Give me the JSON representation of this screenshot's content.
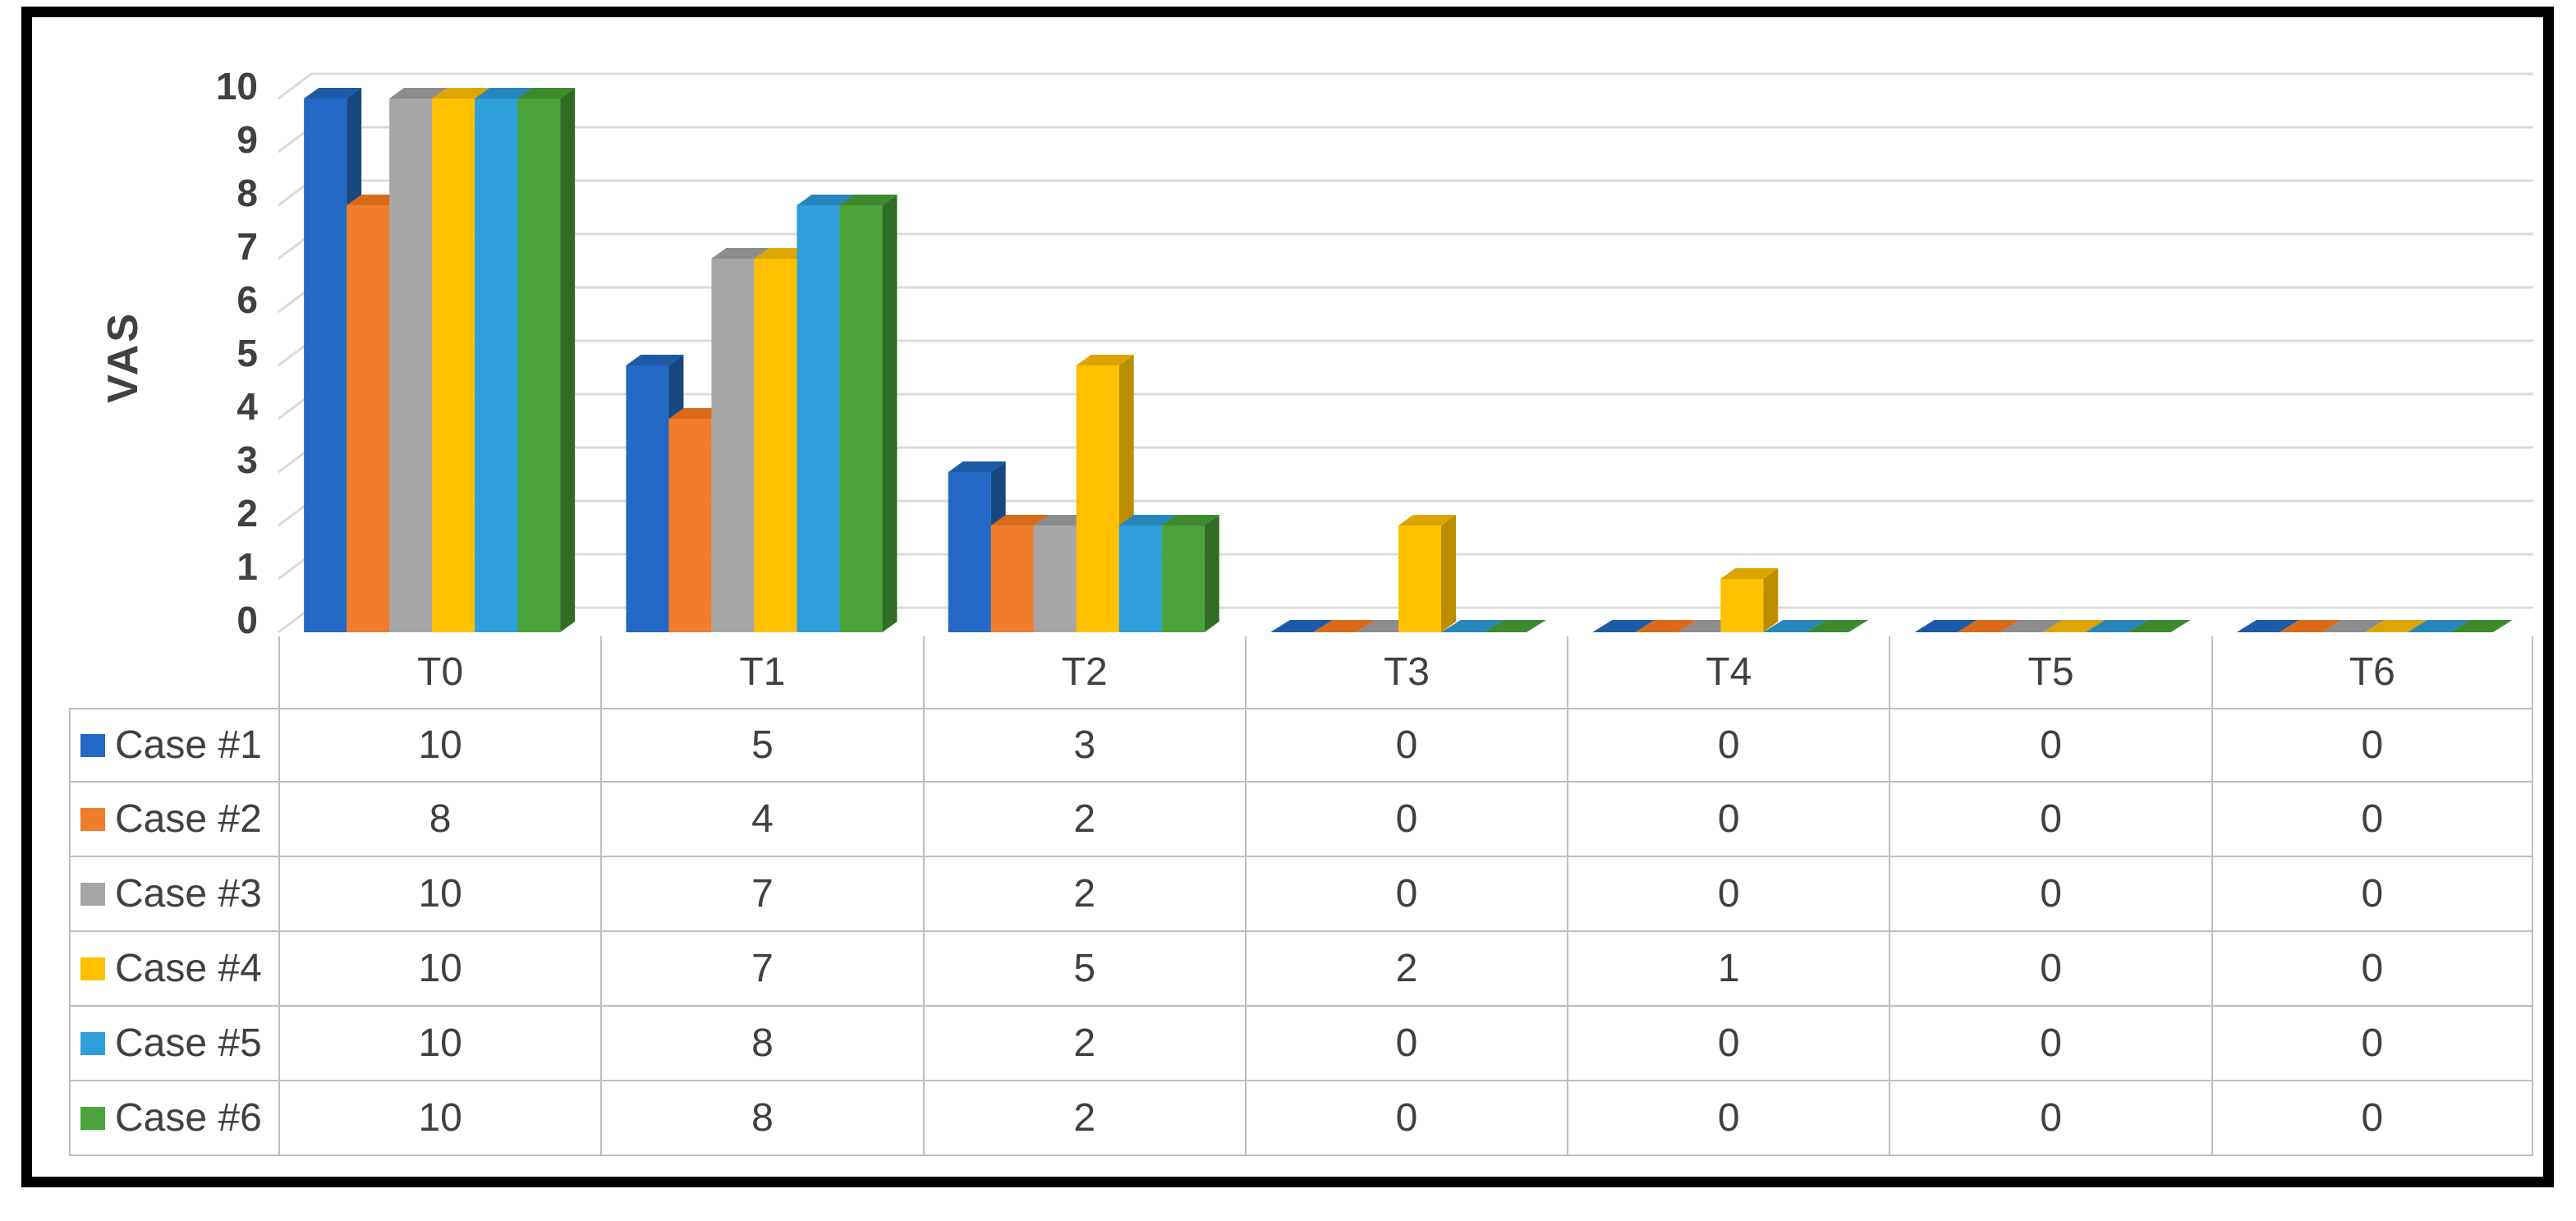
{
  "chart_data": {
    "type": "bar",
    "subtype": "3d-clustered-column",
    "title": "",
    "xlabel": "",
    "ylabel": "VAS",
    "ylim": [
      0,
      10
    ],
    "ytick_step": 1,
    "grid": true,
    "legend_position": "data-table-left",
    "categories": [
      "T0",
      "T1",
      "T2",
      "T3",
      "T4",
      "T5",
      "T6"
    ],
    "series": [
      {
        "name": "Case #1",
        "color": "#2268C4",
        "color_dark": "#17497F",
        "color_top": "#1D5AA8",
        "values": [
          10,
          5,
          3,
          0,
          0,
          0,
          0
        ]
      },
      {
        "name": "Case #2",
        "color": "#F07D2B",
        "color_dark": "#C55A11",
        "color_top": "#D96A1A",
        "values": [
          8,
          4,
          2,
          0,
          0,
          0,
          0
        ]
      },
      {
        "name": "Case #3",
        "color": "#A6A6A6",
        "color_dark": "#757575",
        "color_top": "#8C8C8C",
        "values": [
          10,
          7,
          2,
          0,
          0,
          0,
          0
        ]
      },
      {
        "name": "Case #4",
        "color": "#FFC000",
        "color_dark": "#BB8E00",
        "color_top": "#DDA500",
        "values": [
          10,
          7,
          5,
          2,
          1,
          0,
          0
        ]
      },
      {
        "name": "Case #5",
        "color": "#2E9FDB",
        "color_dark": "#1F6F9C",
        "color_top": "#2787BC",
        "values": [
          10,
          8,
          2,
          0,
          0,
          0,
          0
        ]
      },
      {
        "name": "Case #6",
        "color": "#4CA33C",
        "color_dark": "#2F6D24",
        "color_top": "#3D8A2F",
        "values": [
          10,
          8,
          2,
          0,
          0,
          0,
          0
        ]
      }
    ]
  },
  "colors": {
    "grid": "#DBDBDB",
    "text": "#404040",
    "table_border": "#BFBFBF",
    "frame_border": "#000000",
    "background": "#FFFFFF"
  }
}
